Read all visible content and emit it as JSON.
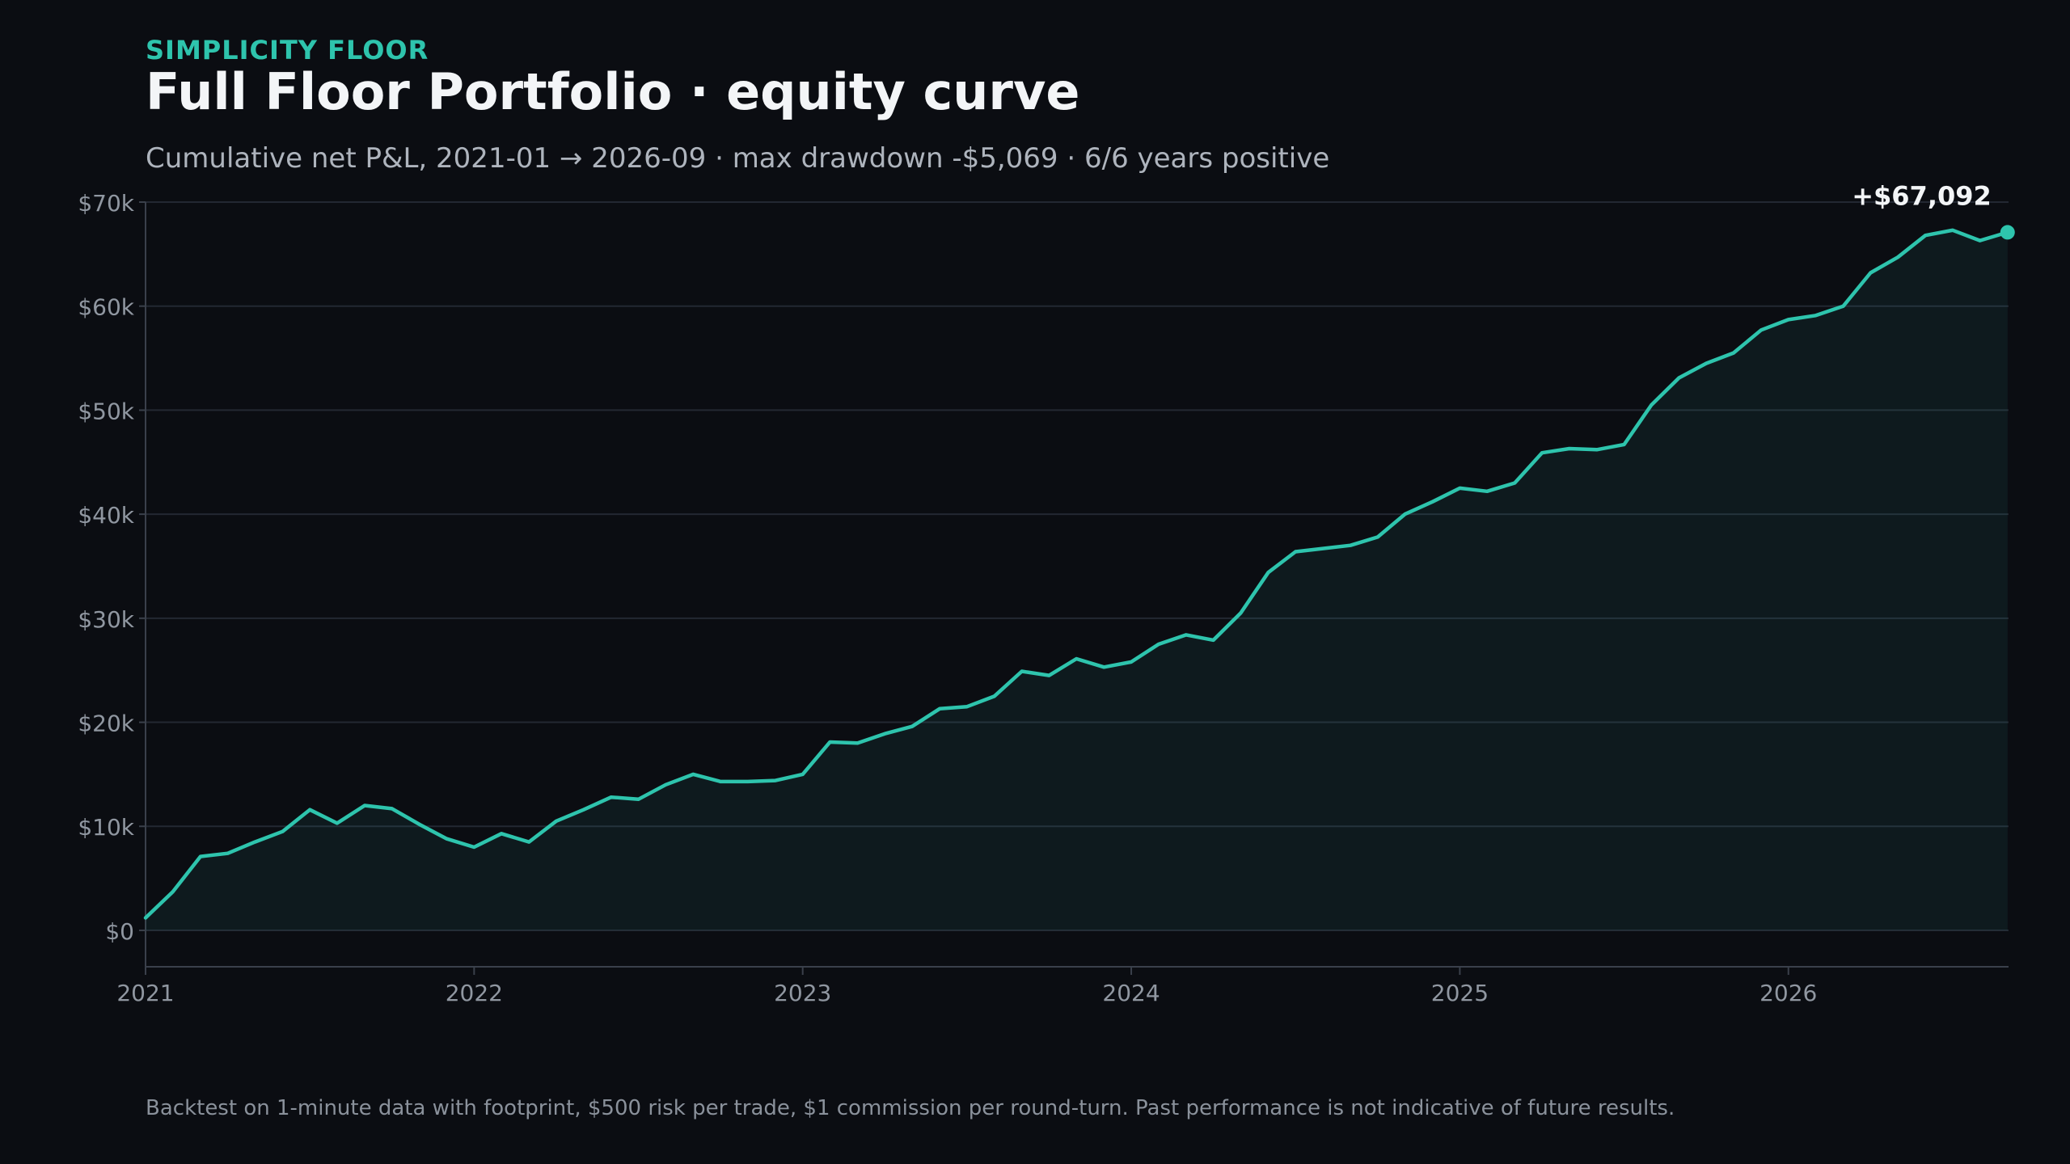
{
  "header": {
    "eyebrow": "SIMPLICITY FLOOR",
    "title": "Full Floor Portfolio · equity curve",
    "subtitle": "Cumulative net P&L, 2021-01 → 2026-09 · max drawdown -$5,069 · 6/6 years positive"
  },
  "footer": {
    "note": "Backtest on 1-minute data with footprint, $500 risk per trade, $1 commission per round-turn. Past performance is not indicative of future results."
  },
  "colors": {
    "accent": "#2ec4ad",
    "background": "#0b0d12",
    "grid": "#232832",
    "tick": "#9097a1"
  },
  "chart_data": {
    "type": "area",
    "title": "Full Floor Portfolio · equity curve",
    "subtitle": "Cumulative net P&L, 2021-01 → 2026-09 · max drawdown -$5,069 · 6/6 years positive",
    "x_start": "2021-01",
    "x_end": "2026-09",
    "x_unit": "year",
    "xlim": [
      2021.0,
      2026.67
    ],
    "xticks": [
      2021,
      2022,
      2023,
      2024,
      2025,
      2026
    ],
    "xtick_labels": [
      "2021",
      "2022",
      "2023",
      "2024",
      "2025",
      "2026"
    ],
    "ylim": [
      -3500,
      70000
    ],
    "yticks": [
      0,
      10000,
      20000,
      30000,
      40000,
      50000,
      60000,
      70000
    ],
    "ytick_labels": [
      "$0",
      "$10k",
      "$20k",
      "$30k",
      "$40k",
      "$50k",
      "$60k",
      "$70k"
    ],
    "grid": true,
    "end_label": "+$67,092",
    "series": [
      {
        "x": [
          2021.0,
          2021.083,
          2021.167,
          2021.25,
          2021.333,
          2021.417,
          2021.5,
          2021.583,
          2021.667,
          2021.75,
          2021.833,
          2021.917,
          2022.0,
          2022.083,
          2022.167,
          2022.25,
          2022.333,
          2022.417,
          2022.5,
          2022.583,
          2022.667,
          2022.75,
          2022.833,
          2022.917,
          2023.0,
          2023.083,
          2023.167,
          2023.25,
          2023.333,
          2023.417,
          2023.5,
          2023.583,
          2023.667,
          2023.75,
          2023.833,
          2023.917,
          2024.0,
          2024.083,
          2024.167,
          2024.25,
          2024.333,
          2024.417,
          2024.5,
          2024.583,
          2024.667,
          2024.75,
          2024.833,
          2024.917,
          2025.0,
          2025.083,
          2025.167,
          2025.25,
          2025.333,
          2025.417,
          2025.5,
          2025.583,
          2025.667,
          2025.75,
          2025.833,
          2025.917,
          2026.0,
          2026.083,
          2026.167,
          2026.25,
          2026.333,
          2026.417,
          2026.5,
          2026.583,
          2026.667
        ],
        "values": [
          1200,
          3700,
          7100,
          7400,
          8500,
          9500,
          11600,
          10300,
          12000,
          11700,
          10200,
          8800,
          8000,
          9300,
          8500,
          10500,
          11600,
          12800,
          12600,
          14000,
          15000,
          14300,
          14300,
          14400,
          15000,
          18100,
          18000,
          18900,
          19600,
          21300,
          21500,
          22500,
          24900,
          24500,
          26100,
          25300,
          25800,
          27500,
          28400,
          27900,
          30500,
          34400,
          36400,
          36700,
          37000,
          37800,
          40000,
          41200,
          42500,
          42200,
          43000,
          45900,
          46300,
          46200,
          46700,
          50500,
          53100,
          54500,
          55500,
          57700,
          58700,
          59100,
          60000,
          63200,
          64700,
          66800,
          67300,
          66300,
          67092
        ]
      }
    ]
  }
}
